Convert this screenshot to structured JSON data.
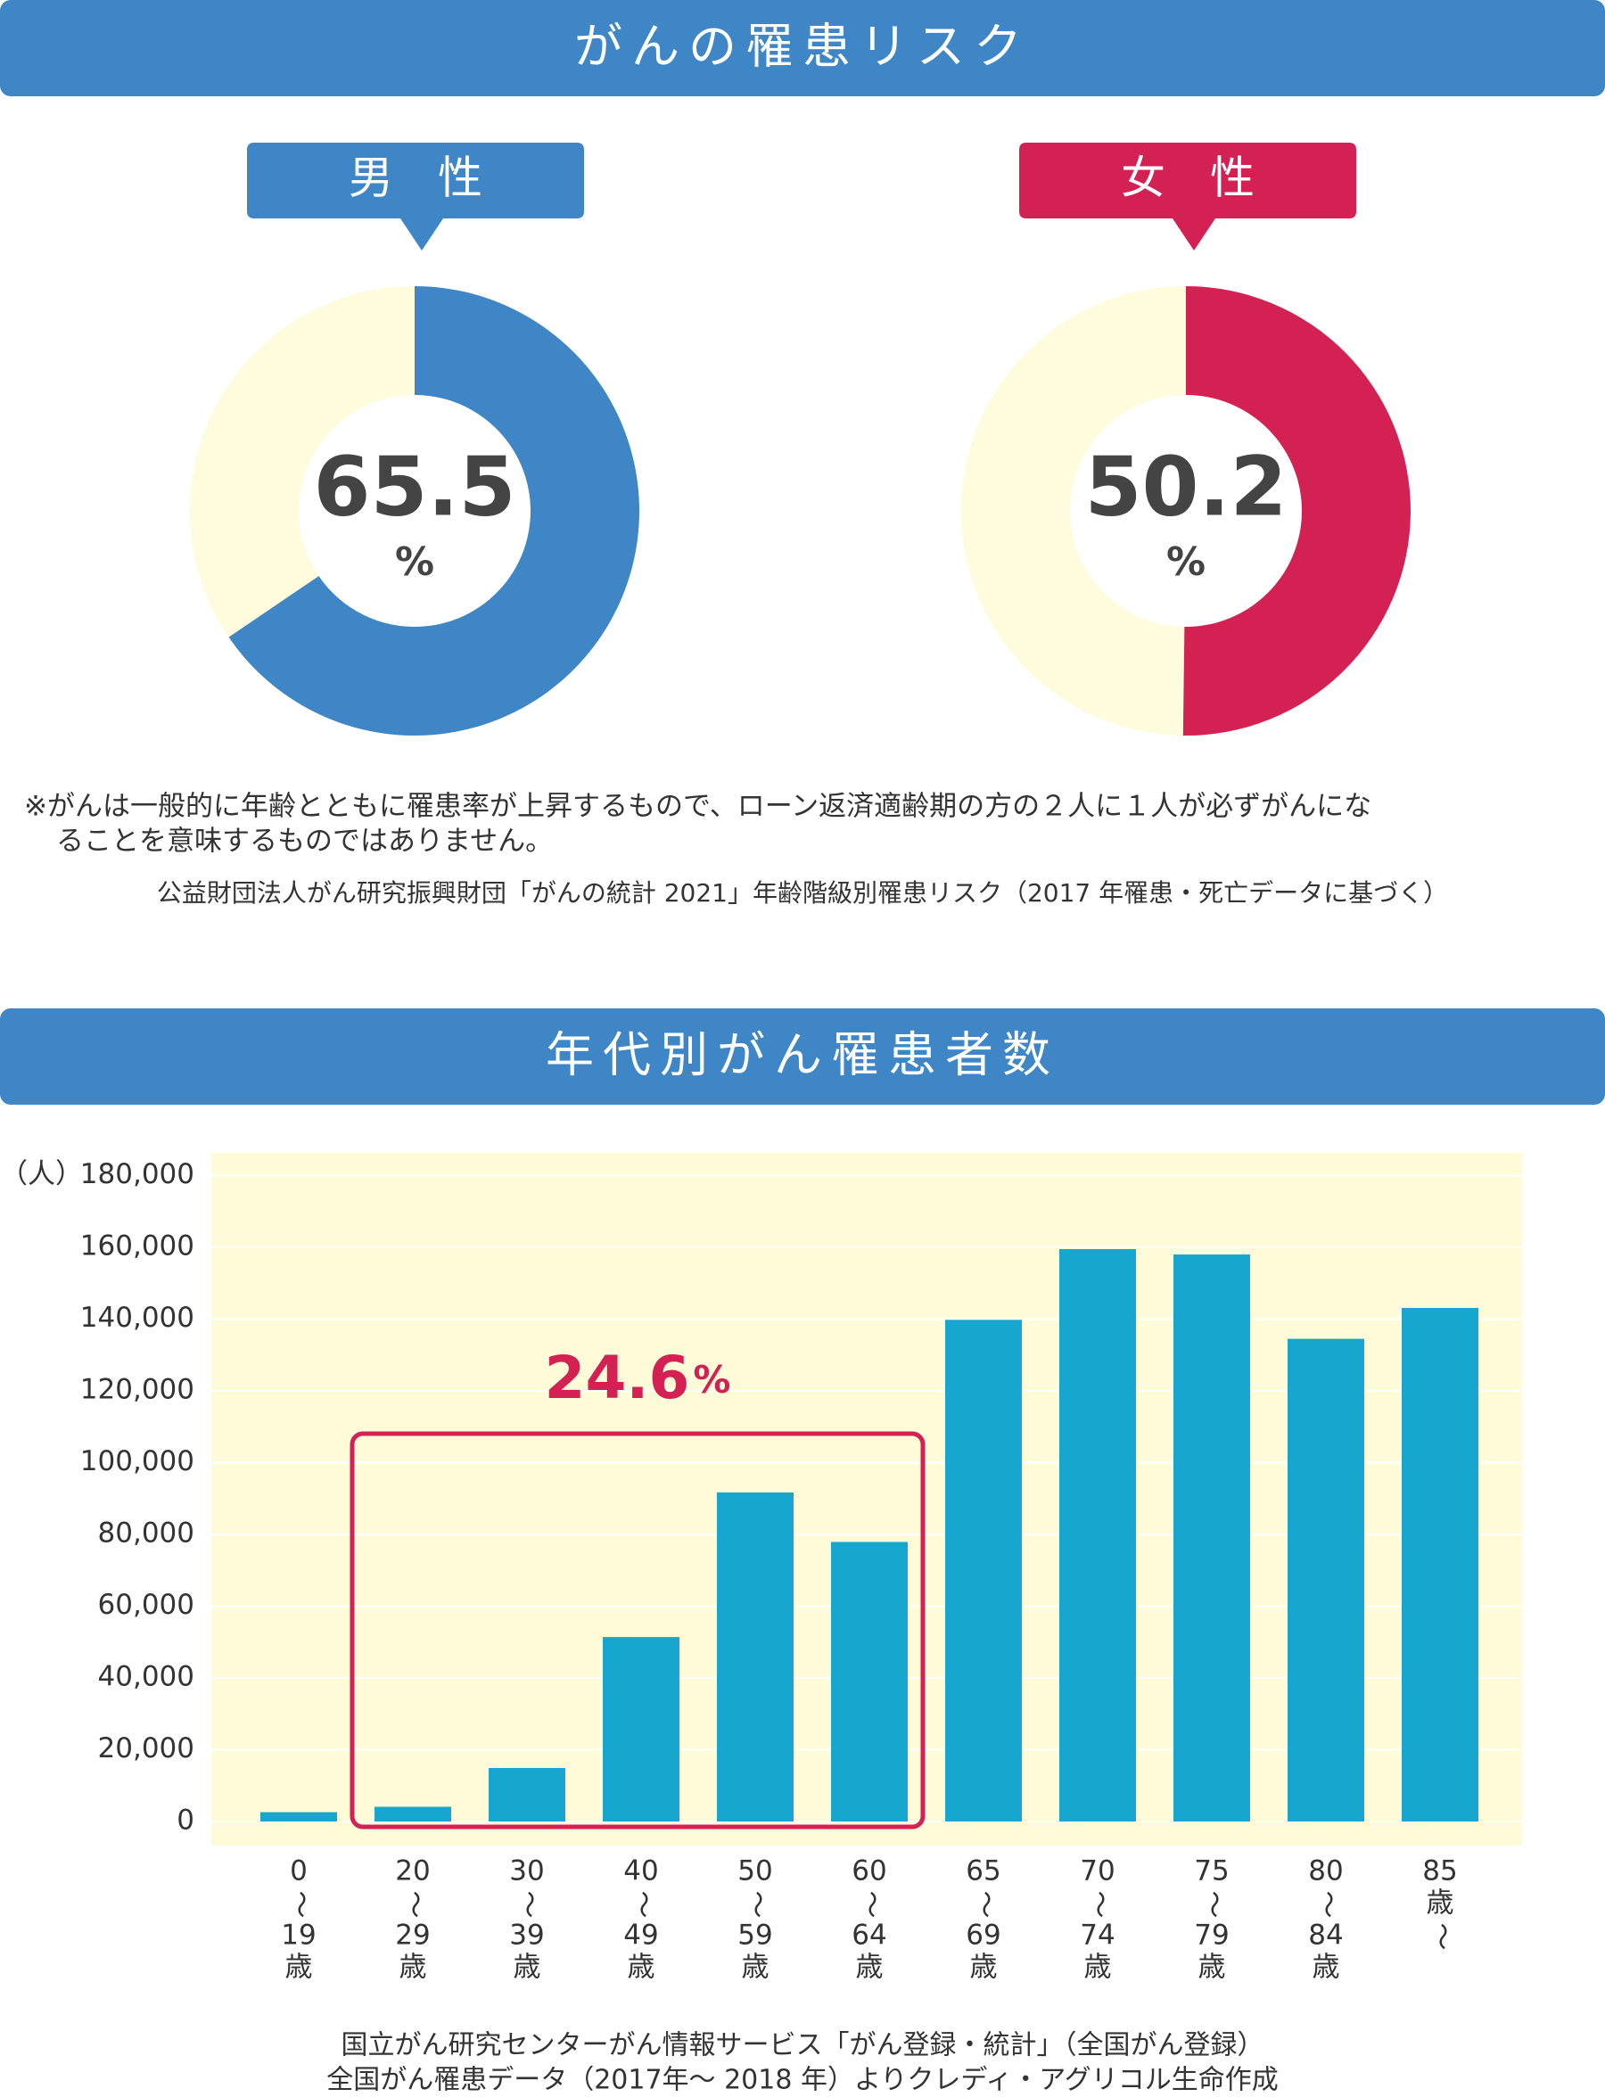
{
  "sections": [
    "がんの罹患リスク",
    "年代別がん罹患者数"
  ],
  "notes": [
    "※がんは一般的に年齢とともに罹患率が上昇するもので、ローン返済適齢期の方の２人に１人が必ずがんにな",
    "ることを意味するものではありません。"
  ],
  "source": "公益財団法人がん研究振興財団「がんの統計 2021」年齢階級別罹患リスク（2017 年罹患・死亡データに基づく）",
  "chart_data": [
    {
      "type": "donut",
      "label": "男　性",
      "value": 65.5,
      "unit": "%",
      "color": "#3f86c6",
      "rest_color": "#fefcdc"
    },
    {
      "type": "donut",
      "label": "女　性",
      "value": 50.2,
      "unit": "%",
      "color": "#d42154",
      "rest_color": "#fefcdc"
    },
    {
      "type": "bar",
      "y_label": "（人）",
      "categories": [
        [
          "0",
          "〜",
          "19",
          "歳"
        ],
        [
          "20",
          "〜",
          "29",
          "歳"
        ],
        [
          "30",
          "〜",
          "39",
          "歳"
        ],
        [
          "40",
          "〜",
          "49",
          "歳"
        ],
        [
          "50",
          "〜",
          "59",
          "歳"
        ],
        [
          "60",
          "〜",
          "64",
          "歳"
        ],
        [
          "65",
          "〜",
          "69",
          "歳"
        ],
        [
          "70",
          "〜",
          "74",
          "歳"
        ],
        [
          "75",
          "〜",
          "79",
          "歳"
        ],
        [
          "80",
          "〜",
          "84",
          "歳"
        ],
        [
          "85",
          "歳",
          "〜"
        ]
      ],
      "values": [
        2600,
        4100,
        14900,
        51400,
        91700,
        77900,
        139800,
        159500,
        158000,
        134500,
        143100
      ],
      "color": "#17a6ce",
      "plot_background": "#fefcd8",
      "grid": true,
      "ylim": [
        0,
        180000
      ],
      "yticks": [
        0,
        {
          "value": 20000,
          "label": "20,000"
        },
        {
          "value": 40000,
          "label": "40,000"
        },
        {
          "value": 60000,
          "label": "60,000"
        },
        {
          "value": 80000,
          "label": "80,000"
        },
        {
          "value": 100000,
          "label": "100,000"
        },
        {
          "value": 120000,
          "label": "120,000"
        },
        {
          "value": 140000,
          "label": "140,000"
        },
        {
          "value": 160000,
          "label": "160,000"
        },
        {
          "value": 180000,
          "label": "180,000"
        }
      ],
      "annotation": {
        "text": "24.6",
        "unit": "%",
        "color": "#d42154"
      },
      "sources": [
        "国立がん研究センターがん情報サービス「がん登録・統計」（全国がん登録）",
        "全国がん罹患データ（2017年〜 2018 年）よりクレディ・アグリコル生命作成"
      ]
    }
  ]
}
